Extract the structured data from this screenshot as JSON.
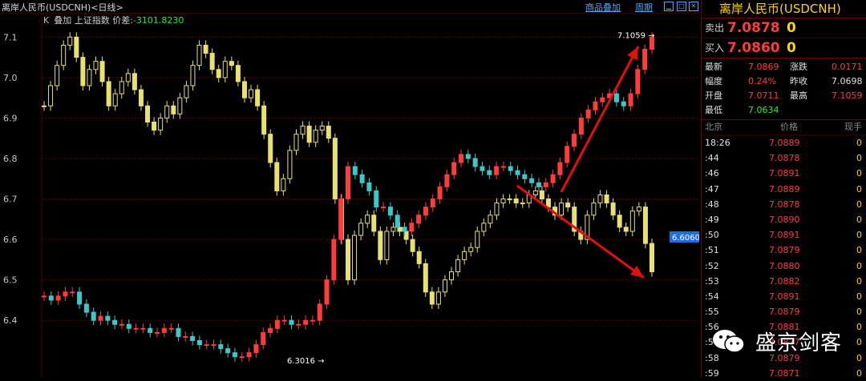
{
  "header": {
    "title": "离岸人民币(USDCNH)<日线>",
    "overlay_k": "K",
    "overlay_text": "叠加 上证指数 价差:",
    "overlay_diff": "-3101.8230",
    "link_products": "商品叠加",
    "link_period": "周期"
  },
  "quote": {
    "title": "离岸人民币(USDCNH)",
    "sell_label": "卖出",
    "sell_price": "7.0878",
    "sell_vol": "0",
    "buy_label": "买入",
    "buy_price": "7.0860",
    "buy_vol": "0",
    "stats": [
      {
        "l1": "最新",
        "v1": "7.0869",
        "c1": "red",
        "l2": "涨跌",
        "v2": "0.0171",
        "c2": "red"
      },
      {
        "l1": "幅度",
        "v1": "0.24%",
        "c1": "red",
        "l2": "昨收",
        "v2": "7.0698",
        "c2": "white"
      },
      {
        "l1": "开盘",
        "v1": "7.0711",
        "c1": "red",
        "l2": "最高",
        "v2": "7.1059",
        "c2": "red"
      },
      {
        "l1": "最低",
        "v1": "7.0634",
        "c1": "green",
        "l2": "",
        "v2": "",
        "c2": "white"
      }
    ],
    "ticks_header": {
      "time": "北京",
      "price": "价格",
      "vol": "现手"
    },
    "ticks": [
      {
        "time": "18:26",
        "price": "7.0889",
        "vol": "0"
      },
      {
        "time": ":44",
        "price": "7.0878",
        "vol": "0"
      },
      {
        "time": ":46",
        "price": "7.0891",
        "vol": "0"
      },
      {
        "time": ":47",
        "price": "7.0889",
        "vol": "0"
      },
      {
        "time": ":48",
        "price": "7.0878",
        "vol": "0"
      },
      {
        "time": ":49",
        "price": "7.0890",
        "vol": "0"
      },
      {
        "time": ":50",
        "price": "7.0891",
        "vol": "0"
      },
      {
        "time": ":51",
        "price": "7.0879",
        "vol": "0"
      },
      {
        "time": ":52",
        "price": "7.0880",
        "vol": "0"
      },
      {
        "time": ":53",
        "price": "7.0882",
        "vol": "0"
      },
      {
        "time": ":54",
        "price": "7.0891",
        "vol": "0"
      },
      {
        "time": ":55",
        "price": "7.0879",
        "vol": "0"
      },
      {
        "time": ":56",
        "price": "7.0881",
        "vol": "0"
      },
      {
        "time": ":57",
        "price": "7.0877",
        "vol": "0"
      },
      {
        "time": ":58",
        "price": "7.0879",
        "vol": "0"
      },
      {
        "time": ":59",
        "price": "7.0871",
        "vol": "0"
      }
    ]
  },
  "watermark": {
    "text": "盛京剑客"
  },
  "chart_data": {
    "type": "line",
    "ylim": [
      6.26,
      7.16
    ],
    "yticks": [
      6.4,
      6.5,
      6.6,
      6.7,
      6.8,
      6.9,
      7.0,
      7.1
    ],
    "ytick_labels": [
      "6.4",
      "6.5",
      "6.6",
      "6.7",
      "6.8",
      "6.9",
      "7.0",
      "7.1"
    ],
    "grid": true,
    "current_value_label": "6.6060",
    "current_value": 6.606,
    "annotations": [
      {
        "text": "7.1059",
        "value": 7.1059
      },
      {
        "text": "6.3016",
        "value": 6.3016
      }
    ],
    "series": [
      {
        "color": "#e8e070",
        "values": [
          6.93,
          6.98,
          7.03,
          7.08,
          7.1,
          7.05,
          6.98,
          7.02,
          7.04,
          6.99,
          6.93,
          6.96,
          6.99,
          7.01,
          6.97,
          6.93,
          6.89,
          6.87,
          6.9,
          6.93,
          6.91,
          6.95,
          6.98,
          7.03,
          7.08,
          7.06,
          7.02,
          7.0,
          7.04,
          7.03,
          6.99,
          6.95,
          6.97,
          6.93,
          6.86,
          6.79,
          6.72,
          6.75,
          6.82,
          6.86,
          6.88,
          6.84,
          6.87,
          6.88,
          6.85,
          6.7,
          6.6,
          6.5,
          6.61,
          6.64,
          6.66,
          6.62,
          6.55,
          6.62,
          6.63,
          6.62,
          6.6,
          6.57,
          6.54,
          6.47,
          6.44,
          6.47,
          6.5,
          6.52,
          6.55,
          6.57,
          6.58,
          6.62,
          6.64,
          6.66,
          6.69,
          6.7,
          6.7,
          6.69,
          6.69,
          6.71,
          6.72,
          6.7,
          6.68,
          6.66,
          6.69,
          6.68,
          6.62,
          6.6,
          6.66,
          6.69,
          6.71,
          6.69,
          6.66,
          6.63,
          6.62,
          6.67,
          6.68,
          6.59,
          6.52
        ]
      },
      {
        "color": "#3cc8c8",
        "values": [
          6.46,
          6.45,
          6.46,
          6.47,
          6.47,
          6.44,
          6.42,
          6.4,
          6.41,
          6.4,
          6.39,
          6.39,
          6.38,
          6.38,
          6.38,
          6.37,
          6.37,
          6.38,
          6.38,
          6.36,
          6.36,
          6.35,
          6.34,
          6.34,
          6.34,
          6.33,
          6.32,
          6.31,
          6.31,
          6.32,
          6.34,
          6.37,
          6.38,
          6.4,
          6.4,
          6.39,
          6.39,
          6.4,
          6.4,
          6.44,
          6.5,
          6.6,
          6.7,
          6.78,
          6.76,
          6.74,
          6.72,
          6.68,
          6.68,
          6.66,
          6.63,
          6.62,
          6.64,
          6.66,
          6.68,
          6.7,
          6.73,
          6.76,
          6.79,
          6.81,
          6.8,
          6.78,
          6.77,
          6.76,
          6.78,
          6.78,
          6.77,
          6.76,
          6.75,
          6.74,
          6.73,
          6.74,
          6.76,
          6.79,
          6.83,
          6.86,
          6.9,
          6.92,
          6.94,
          6.95,
          6.96,
          6.94,
          6.93,
          6.96,
          7.02,
          7.07,
          7.1
        ]
      }
    ]
  }
}
